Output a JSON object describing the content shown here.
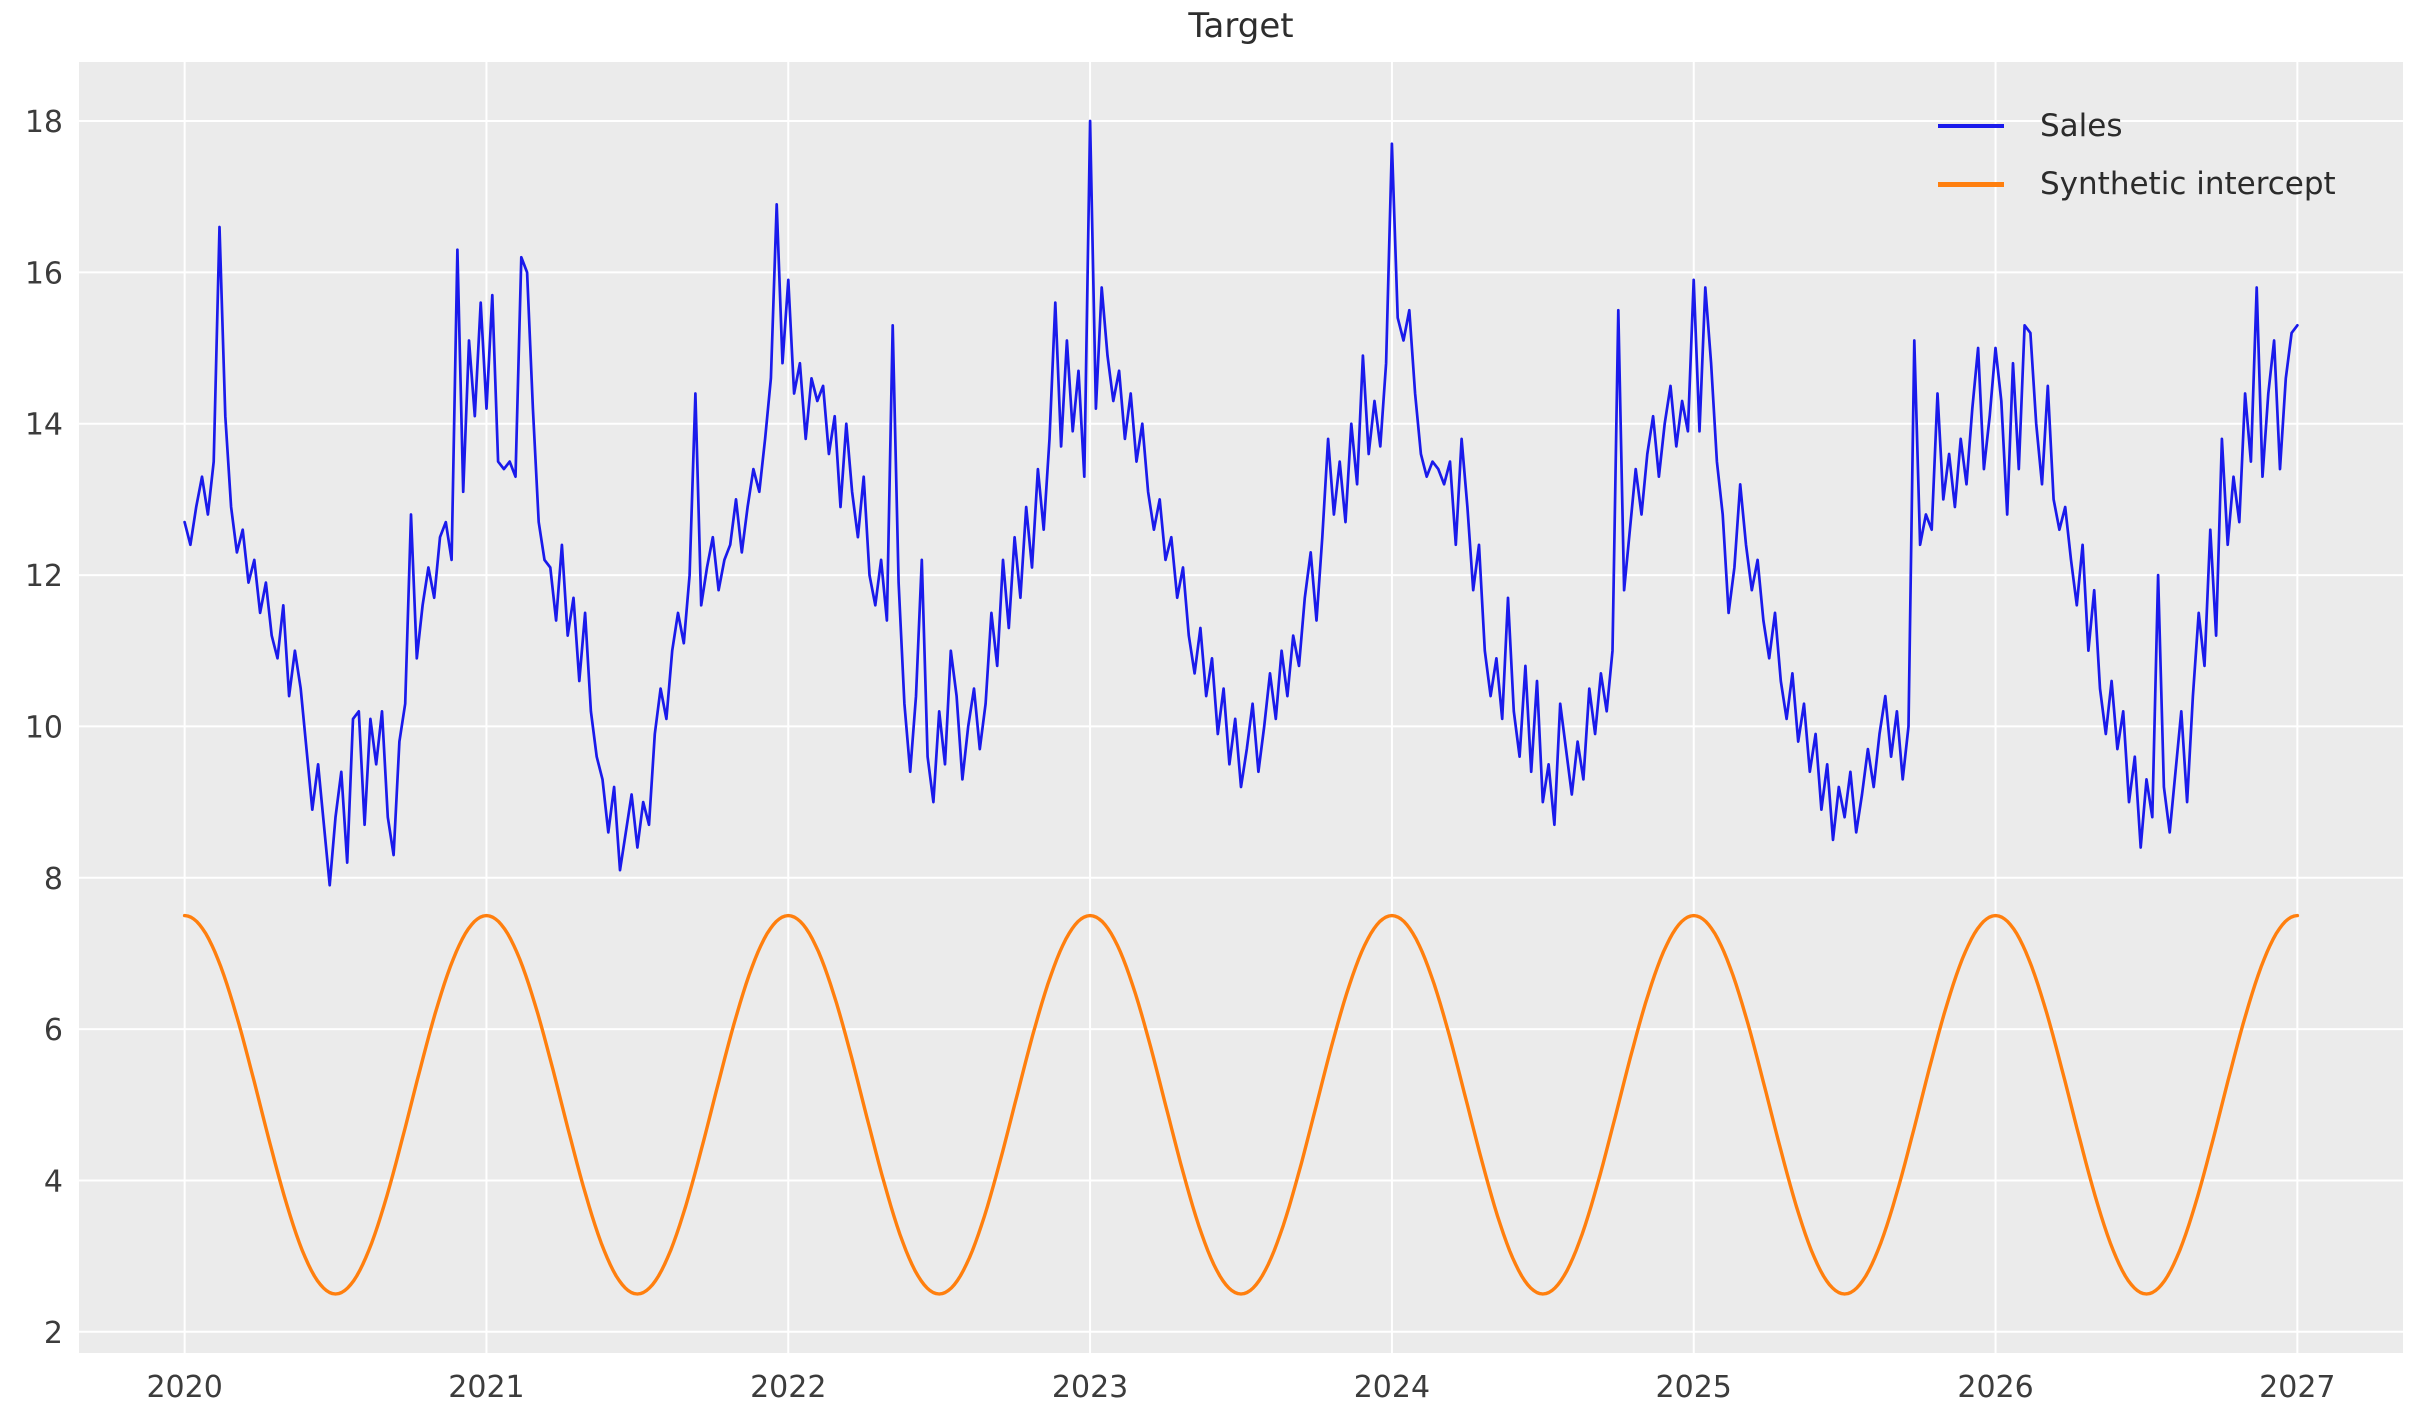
{
  "chart_data": {
    "type": "line",
    "title": "Target",
    "grid": true,
    "legend_position": "upper right",
    "colors": {
      "figure_bg": "#ffffff",
      "axes_bg": "#ebebeb",
      "grid": "#ffffff",
      "tick_text": "#3c3c3c",
      "title_text": "#2e2e2e"
    },
    "x_axis": {
      "ticks": [
        2020,
        2021,
        2022,
        2023,
        2024,
        2025,
        2026,
        2027
      ],
      "tick_labels": [
        "2020",
        "2021",
        "2022",
        "2023",
        "2024",
        "2025",
        "2026",
        "2027"
      ],
      "range": [
        2019.65,
        2027.35
      ]
    },
    "y_axis": {
      "ticks": [
        2,
        4,
        6,
        8,
        10,
        12,
        14,
        16,
        18
      ],
      "tick_labels": [
        "2",
        "4",
        "6",
        "8",
        "10",
        "12",
        "14",
        "16",
        "18"
      ],
      "range": [
        1.72,
        18.78
      ]
    },
    "series": [
      {
        "name": "Sales",
        "color": "#1a1aeb",
        "line_width": 2.7,
        "x_start": 2020,
        "x_step": 0.019230769,
        "values": [
          12.7,
          12.4,
          12.9,
          13.3,
          12.8,
          13.5,
          16.6,
          14.1,
          12.9,
          12.3,
          12.6,
          11.9,
          12.2,
          11.5,
          11.9,
          11.2,
          10.9,
          11.6,
          10.4,
          11.0,
          10.5,
          9.7,
          8.9,
          9.5,
          8.7,
          7.9,
          8.8,
          9.4,
          8.2,
          10.1,
          10.2,
          8.7,
          10.1,
          9.5,
          10.2,
          8.8,
          8.3,
          9.8,
          10.3,
          12.8,
          10.9,
          11.6,
          12.1,
          11.7,
          12.5,
          12.7,
          12.2,
          16.3,
          13.1,
          15.1,
          14.1,
          15.6,
          14.2,
          15.7,
          13.5,
          13.4,
          13.5,
          13.3,
          16.2,
          16.0,
          14.2,
          12.7,
          12.2,
          12.1,
          11.4,
          12.4,
          11.2,
          11.7,
          10.6,
          11.5,
          10.2,
          9.6,
          9.3,
          8.6,
          9.2,
          8.1,
          8.6,
          9.1,
          8.4,
          9.0,
          8.7,
          9.9,
          10.5,
          10.1,
          11.0,
          11.5,
          11.1,
          12.0,
          14.4,
          11.6,
          12.1,
          12.5,
          11.8,
          12.2,
          12.4,
          13.0,
          12.3,
          12.9,
          13.4,
          13.1,
          13.8,
          14.6,
          16.9,
          14.8,
          15.9,
          14.4,
          14.8,
          13.8,
          14.6,
          14.3,
          14.5,
          13.6,
          14.1,
          12.9,
          14.0,
          13.1,
          12.5,
          13.3,
          12.0,
          11.6,
          12.2,
          11.4,
          15.3,
          11.9,
          10.3,
          9.4,
          10.4,
          12.2,
          9.6,
          9.0,
          10.2,
          9.5,
          11.0,
          10.4,
          9.3,
          10.0,
          10.5,
          9.7,
          10.3,
          11.5,
          10.8,
          12.2,
          11.3,
          12.5,
          11.7,
          12.9,
          12.1,
          13.4,
          12.6,
          13.8,
          15.6,
          13.7,
          15.1,
          13.9,
          14.7,
          13.3,
          18.0,
          14.2,
          15.8,
          14.9,
          14.3,
          14.7,
          13.8,
          14.4,
          13.5,
          14.0,
          13.1,
          12.6,
          13.0,
          12.2,
          12.5,
          11.7,
          12.1,
          11.2,
          10.7,
          11.3,
          10.4,
          10.9,
          9.9,
          10.5,
          9.5,
          10.1,
          9.2,
          9.7,
          10.3,
          9.4,
          10.0,
          10.7,
          10.1,
          11.0,
          10.4,
          11.2,
          10.8,
          11.7,
          12.3,
          11.4,
          12.5,
          13.8,
          12.8,
          13.5,
          12.7,
          14.0,
          13.2,
          14.9,
          13.6,
          14.3,
          13.7,
          14.8,
          17.7,
          15.4,
          15.1,
          15.5,
          14.4,
          13.6,
          13.3,
          13.5,
          13.4,
          13.2,
          13.5,
          12.4,
          13.8,
          12.9,
          11.8,
          12.4,
          11.0,
          10.4,
          10.9,
          10.1,
          11.7,
          10.2,
          9.6,
          10.8,
          9.4,
          10.6,
          9.0,
          9.5,
          8.7,
          10.3,
          9.7,
          9.1,
          9.8,
          9.3,
          10.5,
          9.9,
          10.7,
          10.2,
          11.0,
          15.5,
          11.8,
          12.6,
          13.4,
          12.8,
          13.6,
          14.1,
          13.3,
          14.0,
          14.5,
          13.7,
          14.3,
          13.9,
          15.9,
          13.9,
          15.8,
          14.8,
          13.5,
          12.8,
          11.5,
          12.1,
          13.2,
          12.4,
          11.8,
          12.2,
          11.4,
          10.9,
          11.5,
          10.6,
          10.1,
          10.7,
          9.8,
          10.3,
          9.4,
          9.9,
          8.9,
          9.5,
          8.5,
          9.2,
          8.8,
          9.4,
          8.6,
          9.1,
          9.7,
          9.2,
          9.9,
          10.4,
          9.6,
          10.2,
          9.3,
          10.0,
          15.1,
          12.4,
          12.8,
          12.6,
          14.4,
          13.0,
          13.6,
          12.9,
          13.8,
          13.2,
          14.2,
          15.0,
          13.4,
          14.1,
          15.0,
          14.3,
          12.8,
          14.8,
          13.4,
          15.3,
          15.2,
          14.0,
          13.2,
          14.5,
          13.0,
          12.6,
          12.9,
          12.2,
          11.6,
          12.4,
          11.0,
          11.8,
          10.5,
          9.9,
          10.6,
          9.7,
          10.2,
          9.0,
          9.6,
          8.4,
          9.3,
          8.8,
          12.0,
          9.2,
          8.6,
          9.4,
          10.2,
          9.0,
          10.4,
          11.5,
          10.8,
          12.6,
          11.2,
          13.8,
          12.4,
          13.3,
          12.7,
          14.4,
          13.5,
          15.8,
          13.3,
          14.4,
          15.1,
          13.4,
          14.6,
          15.2,
          15.3
        ]
      },
      {
        "name": "Synthetic intercept",
        "color": "#ff7f0e",
        "line_width": 3.4,
        "formula": "5 + 2.5*cos(2*pi*(t-2020))",
        "mean": 5,
        "amplitude": 2.5,
        "period_years": 1,
        "phase_max_at": 2020,
        "t_start": 2020,
        "t_end": 2027,
        "min": 2.5,
        "max": 7.5
      }
    ]
  }
}
